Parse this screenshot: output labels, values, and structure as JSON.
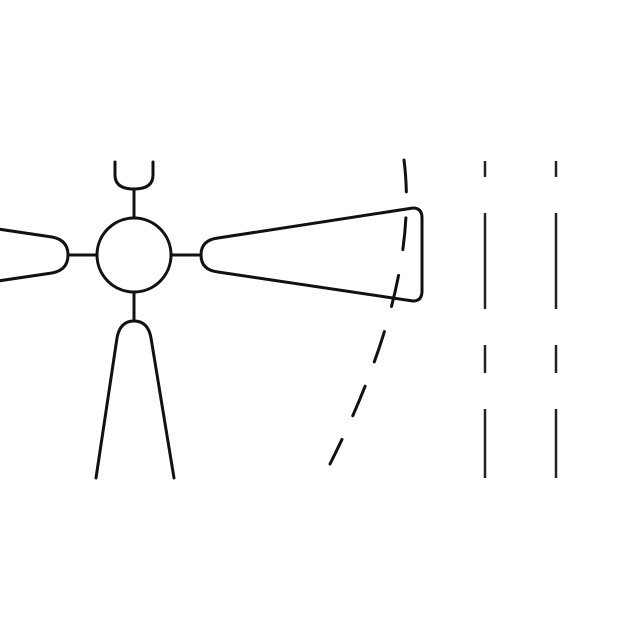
{
  "diagram": {
    "background_color": "#ffffff",
    "stroke_color": "#111111",
    "hub": {
      "shape": "circle"
    },
    "arms": [
      {
        "direction": "up",
        "shape": "rounded-tab"
      },
      {
        "direction": "left",
        "shape": "tapered-blade"
      },
      {
        "direction": "right",
        "shape": "tapered-blade"
      },
      {
        "direction": "down",
        "shape": "tapered-blade"
      }
    ],
    "dashed_arc": {
      "style": "dashed"
    },
    "parallel_lines": {
      "count": 2,
      "style": "dashed-vertical"
    }
  }
}
